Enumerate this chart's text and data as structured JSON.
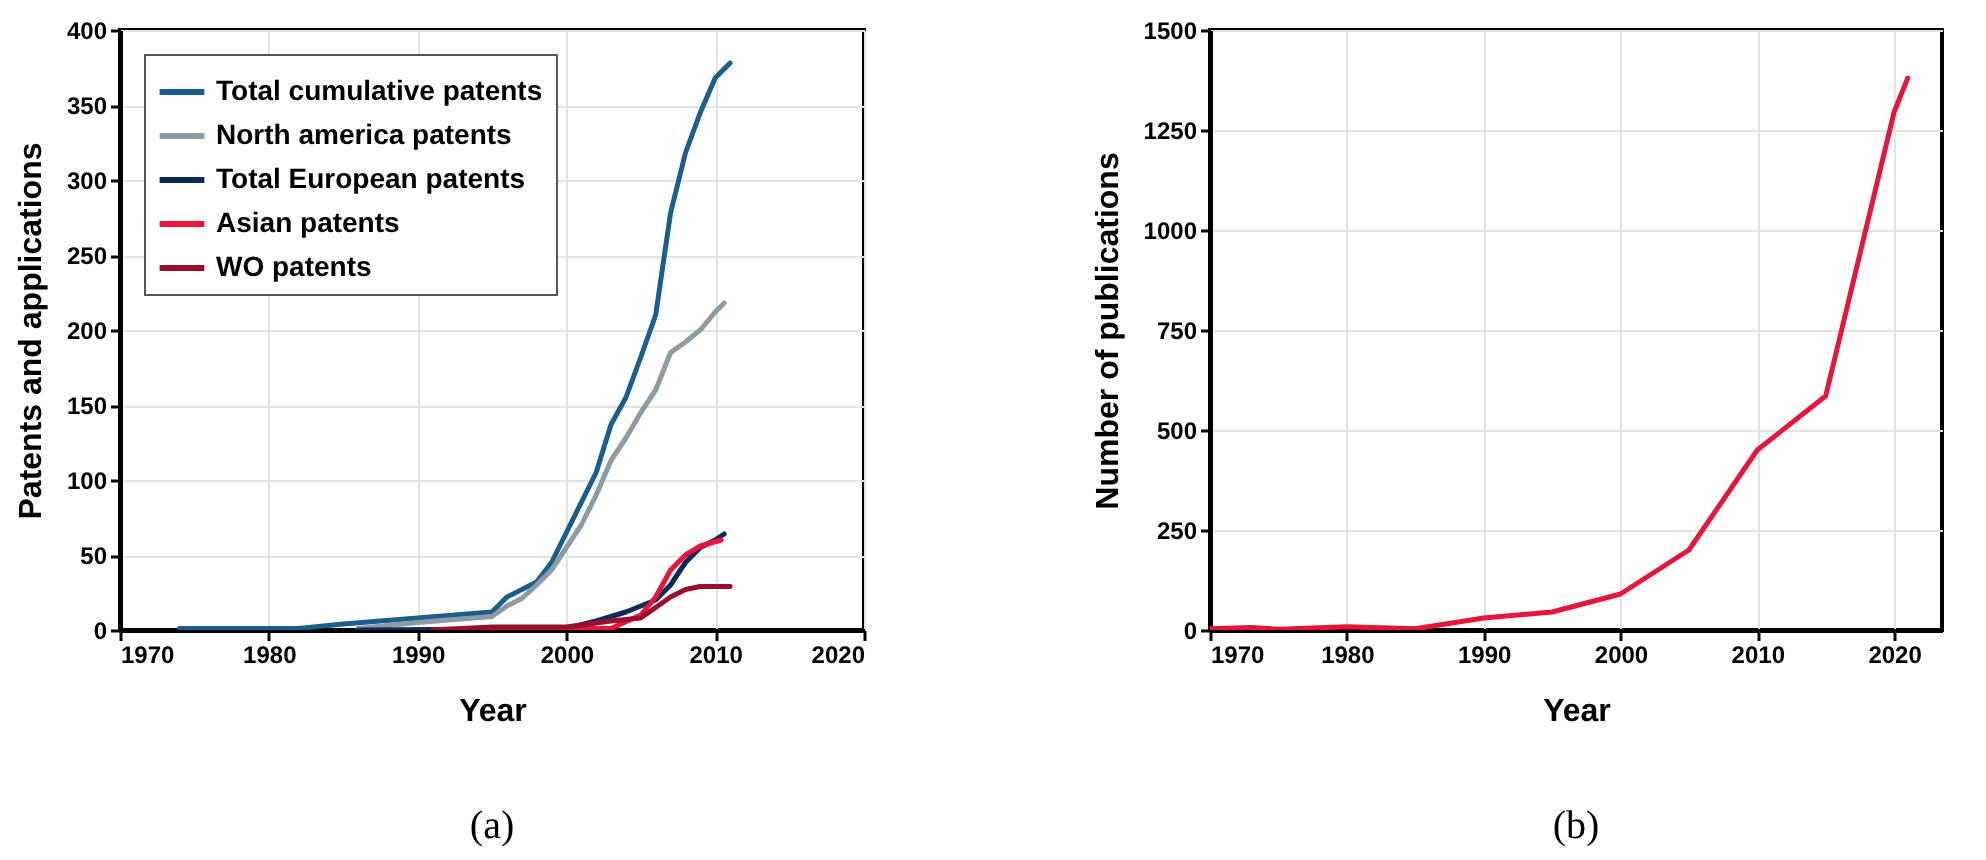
{
  "chart_data": [
    {
      "type": "line",
      "xlabel": "Year",
      "ylabel": "Patents and applications",
      "annotations": [
        "(a)"
      ],
      "xlim": [
        1970,
        2020
      ],
      "xticks": [
        1970,
        1980,
        1990,
        2000,
        2010,
        2020
      ],
      "ylim": [
        0,
        400
      ],
      "yticks": [
        0,
        50,
        100,
        150,
        200,
        250,
        300,
        350,
        400
      ],
      "grid": true,
      "legend": "top left",
      "line_style": "solid",
      "series": [
        {
          "name": "Total cumulative patents",
          "color": "#1b5e8c",
          "x": [
            1974,
            1982,
            1985,
            1990,
            1995,
            1996,
            1998,
            1999,
            2000,
            2002,
            2003,
            2004,
            2005,
            2006,
            2007,
            2008,
            2009,
            2010,
            2011
          ],
          "values": [
            1,
            1,
            4,
            8,
            12,
            22,
            32,
            45,
            65,
            105,
            137,
            155,
            182,
            210,
            278,
            318,
            345,
            368,
            378
          ]
        },
        {
          "name": "North america patents",
          "color": "#8d9ba5",
          "x": [
            1986,
            1990,
            1995,
            1996,
            1997,
            1998,
            1999,
            2000,
            2001,
            2002,
            2003,
            2004,
            2005,
            2006,
            2007,
            2008,
            2009,
            2010,
            2010.6
          ],
          "values": [
            1,
            5,
            9,
            16,
            21,
            30,
            40,
            55,
            70,
            90,
            113,
            128,
            145,
            160,
            185,
            192,
            200,
            212,
            218
          ]
        },
        {
          "name": "Total European patents",
          "color": "#0d2a5a",
          "x": [
            1986,
            2000,
            2002,
            2004,
            2006,
            2007,
            2008,
            2009,
            2010,
            2010.6
          ],
          "values": [
            0,
            1,
            6,
            12,
            20,
            30,
            45,
            55,
            60,
            64
          ]
        },
        {
          "name": "Asian patents",
          "color": "#e8153a",
          "x": [
            1991,
            2000,
            2003,
            2005,
            2006,
            2007,
            2008,
            2009,
            2010.4
          ],
          "values": [
            0,
            1,
            1,
            10,
            22,
            40,
            50,
            56,
            60
          ]
        },
        {
          "name": "WO patents",
          "color": "#9a0e2e",
          "x": [
            1991,
            1995,
            2000,
            2003,
            2005,
            2006,
            2007,
            2008,
            2009,
            2011
          ],
          "values": [
            0,
            2,
            2,
            6,
            8,
            15,
            22,
            27,
            29,
            29
          ]
        }
      ]
    },
    {
      "type": "line",
      "xlabel": "Year",
      "ylabel": "Number of publications",
      "annotations": [
        "(b)"
      ],
      "xlim": [
        1970,
        2023.5
      ],
      "xticks": [
        1970,
        1980,
        1990,
        2000,
        2010,
        2020
      ],
      "ylim": [
        0,
        1500
      ],
      "yticks": [
        0,
        250,
        500,
        750,
        1000,
        1250,
        1500
      ],
      "grid": true,
      "line_style": "solid",
      "series": [
        {
          "color": "#e8153a",
          "x": [
            1970,
            1973,
            1975,
            1980,
            1985,
            1990,
            1995,
            2000,
            2005,
            2010,
            2015,
            2020,
            2021
          ],
          "values": [
            3,
            6,
            2,
            8,
            3,
            30,
            45,
            90,
            200,
            450,
            585,
            1295,
            1380
          ]
        }
      ]
    }
  ]
}
